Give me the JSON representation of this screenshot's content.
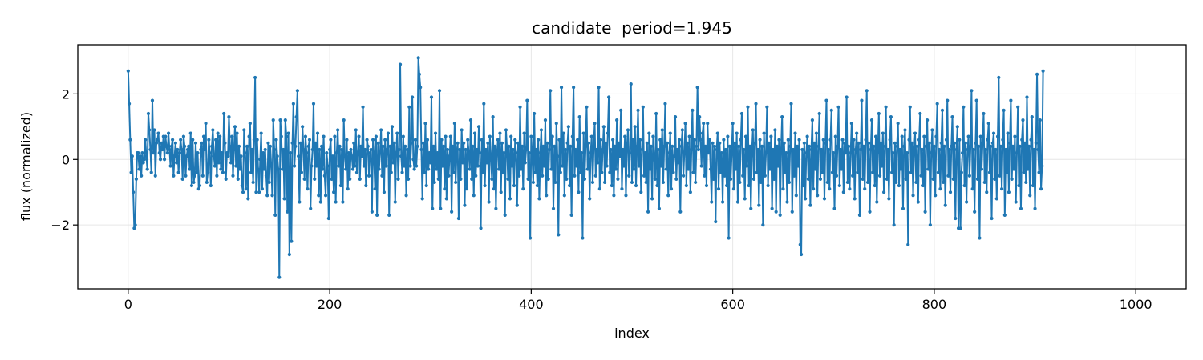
{
  "chart_data": {
    "type": "line",
    "title": "candidate  period=1.945",
    "xlabel": "index",
    "ylabel": "flux (normalized)",
    "xlim": [
      -50,
      1050
    ],
    "ylim": [
      -3.95,
      3.5
    ],
    "x_ticks": [
      0,
      200,
      400,
      600,
      800,
      1000
    ],
    "y_ticks": [
      -2,
      0,
      2
    ],
    "grid": true,
    "marker": "circle",
    "series": [
      {
        "color": "#1f77b4",
        "x_start": 0,
        "x_step": 1,
        "values": [
          2.7,
          1.7,
          0.6,
          -0.4,
          0.1,
          -1.0,
          -2.1,
          -2.0,
          -0.6,
          0.2,
          0.2,
          -0.3,
          0.1,
          -0.5,
          0.2,
          -0.1,
          0.0,
          0.6,
          0.1,
          -0.3,
          1.4,
          0.9,
          0.3,
          -0.4,
          1.8,
          0.2,
          0.9,
          -0.5,
          0.5,
          0.6,
          0.8,
          0.2,
          0.0,
          0.5,
          0.3,
          0.7,
          0.0,
          0.7,
          0.4,
          0.2,
          0.8,
          0.3,
          -0.2,
          0.4,
          0.6,
          -0.5,
          0.1,
          0.5,
          -0.1,
          0.3,
          -0.4,
          0.2,
          0.6,
          0.3,
          -0.6,
          0.7,
          0.4,
          -0.5,
          0.1,
          0.3,
          0.4,
          -0.3,
          0.8,
          -0.8,
          0.6,
          -0.7,
          -0.5,
          0.5,
          -0.4,
          0.2,
          -0.9,
          -0.8,
          0.3,
          0.5,
          -0.5,
          0.7,
          0.3,
          1.1,
          -0.7,
          -0.4,
          0.6,
          0.2,
          -0.8,
          0.4,
          0.9,
          0.1,
          -0.2,
          0.6,
          -0.5,
          0.8,
          -0.1,
          0.7,
          -0.3,
          0.2,
          -0.4,
          1.4,
          0.5,
          -0.6,
          0.2,
          0.1,
          1.3,
          0.4,
          -0.1,
          0.7,
          -0.5,
          0.3,
          1.0,
          -0.2,
          0.8,
          -0.6,
          0.4,
          -0.3,
          0.1,
          -0.8,
          -1.0,
          0.9,
          0.2,
          -0.9,
          0.4,
          -1.2,
          0.7,
          1.1,
          -0.4,
          0.3,
          -0.7,
          0.6,
          2.5,
          -1.0,
          0.6,
          -0.3,
          -1.0,
          0.0,
          0.8,
          -0.9,
          0.2,
          -0.3,
          0.3,
          -0.5,
          -1.1,
          0.5,
          -0.7,
          0.4,
          -0.2,
          -1.1,
          1.2,
          0.3,
          -1.7,
          0.6,
          0.1,
          -0.3,
          -3.6,
          1.2,
          0.7,
          -0.3,
          0.3,
          -1.2,
          1.2,
          0.7,
          -1.6,
          0.8,
          -2.9,
          0.2,
          -2.5,
          0.5,
          1.7,
          -0.2,
          0.4,
          1.3,
          2.1,
          0.1,
          -1.3,
          0.5,
          -0.4,
          1.0,
          0.3,
          -0.6,
          0.7,
          0.2,
          -0.9,
          0.4,
          0.6,
          -1.5,
          -0.2,
          0.3,
          1.7,
          -0.6,
          0.5,
          -0.2,
          0.8,
          -1.1,
          0.3,
          -1.3,
          0.4,
          -0.3,
          0.7,
          -0.5,
          -1.1,
          0.2,
          -0.2,
          -1.8,
          0.3,
          0.6,
          -0.6,
          0.1,
          -1.0,
          0.7,
          -1.3,
          0.2,
          0.9,
          -0.2,
          0.4,
          -0.8,
          0.3,
          -1.3,
          1.2,
          0.1,
          -0.3,
          0.6,
          -0.9,
          0.2,
          -0.6,
          0.3,
          0.1,
          -0.3,
          0.5,
          -0.2,
          0.9,
          -0.4,
          0.2,
          0.7,
          -0.6,
          0.4,
          0.1,
          1.6,
          -0.2,
          0.3,
          -0.8,
          0.6,
          0.4,
          -0.5,
          0.2,
          0.3,
          -1.6,
          0.6,
          0.1,
          -0.9,
          0.7,
          -1.7,
          0.5,
          -0.3,
          0.2,
          0.9,
          -0.5,
          0.4,
          -1.0,
          0.6,
          -0.2,
          0.3,
          0.8,
          -1.7,
          0.4,
          -0.4,
          1.0,
          -0.1,
          0.5,
          -1.3,
          0.2,
          0.8,
          -0.6,
          0.3,
          2.9,
          0.1,
          -0.4,
          0.7,
          -0.2,
          0.4,
          -1.1,
          0.3,
          -0.6,
          1.6,
          -0.2,
          0.5,
          1.9,
          0.0,
          -0.3,
          0.6,
          -0.2,
          0.4,
          3.1,
          2.6,
          2.2,
          0.3,
          -1.2,
          0.5,
          -0.4,
          1.1,
          -0.8,
          0.6,
          -0.3,
          0.2,
          -0.1,
          1.9,
          -1.5,
          0.4,
          -0.7,
          0.8,
          -0.3,
          0.2,
          -0.6,
          2.1,
          -1.5,
          0.6,
          -0.2,
          0.4,
          -0.9,
          0.7,
          -1.2,
          0.3,
          -0.5,
          0.1,
          0.7,
          -1.6,
          0.4,
          -0.4,
          1.1,
          -0.7,
          0.2,
          0.5,
          -1.8,
          0.3,
          -0.6,
          0.9,
          -0.1,
          0.5,
          -1.4,
          0.3,
          -0.9,
          0.6,
          0.2,
          -0.3,
          1.2,
          -0.6,
          0.4,
          -1.1,
          0.8,
          -0.5,
          0.3,
          -0.2,
          1.0,
          0.2,
          -2.1,
          0.6,
          -0.4,
          1.7,
          -0.8,
          0.3,
          -0.1,
          0.5,
          -1.3,
          0.7,
          0.1,
          -0.6,
          1.3,
          -0.9,
          0.4,
          -1.5,
          0.2,
          0.6,
          -0.3,
          0.8,
          -1.0,
          0.5,
          -0.4,
          0.2,
          -1.7,
          0.9,
          0.3,
          -0.6,
          0.4,
          -1.2,
          0.7,
          -0.2,
          0.3,
          -0.8,
          0.6,
          0.2,
          -1.4,
          0.5,
          -0.5,
          1.6,
          -0.3,
          0.4,
          -0.9,
          0.8,
          -0.1,
          0.3,
          1.8,
          -0.6,
          0.2,
          -2.4,
          0.7,
          0.1,
          -0.7,
          1.4,
          -0.4,
          0.3,
          -0.8,
          0.6,
          -1.2,
          0.2,
          0.9,
          -0.5,
          0.4,
          -0.2,
          1.2,
          -1.1,
          0.5,
          -0.6,
          0.3,
          2.1,
          -0.3,
          0.7,
          -1.5,
          0.4,
          -0.7,
          1.1,
          0.1,
          -2.3,
          0.6,
          -0.4,
          2.2,
          -0.2,
          0.8,
          -1.1,
          0.3,
          -0.6,
          0.5,
          1.0,
          -0.8,
          0.4,
          -1.7,
          0.7,
          2.2,
          -0.5,
          0.3,
          -0.2,
          0.6,
          -1.0,
          1.3,
          -0.4,
          0.2,
          -2.4,
          0.8,
          -0.6,
          0.4,
          1.6,
          -0.3,
          0.5,
          -1.2,
          0.2,
          0.7,
          -0.7,
          0.4,
          1.1,
          -0.5,
          0.3,
          -0.1,
          2.2,
          -0.9,
          0.6,
          -0.4,
          0.3,
          1.0,
          -0.7,
          0.5,
          -0.2,
          0.8,
          1.9,
          -0.4,
          0.3,
          -0.8,
          0.6,
          -1.1,
          0.4,
          -0.3,
          1.2,
          -0.6,
          0.5,
          0.1,
          1.5,
          -0.9,
          0.3,
          -0.2,
          0.7,
          -1.1,
          0.4,
          0.9,
          -0.5,
          0.2,
          2.3,
          -0.7,
          0.6,
          -0.3,
          1.0,
          -0.8,
          0.4,
          1.5,
          -0.2,
          0.6,
          -1.0,
          0.3,
          1.6,
          -0.5,
          0.2,
          -0.7,
          0.5,
          -1.6,
          0.8,
          -0.3,
          0.4,
          -1.2,
          0.7,
          0.1,
          -0.6,
          1.4,
          -0.8,
          0.3,
          -1.5,
          0.6,
          -0.2,
          0.9,
          -0.7,
          0.4,
          1.7,
          -0.3,
          0.5,
          -1.1,
          0.2,
          0.8,
          -0.9,
          0.4,
          -0.4,
          0.1,
          1.3,
          -0.6,
          0.3,
          -0.1,
          0.6,
          -1.6,
          0.4,
          0.9,
          -0.5,
          0.2,
          1.1,
          -0.8,
          0.5,
          -0.3,
          0.7,
          -1.0,
          0.3,
          1.5,
          -0.4,
          0.6,
          -0.7,
          0.4,
          2.2,
          0.3,
          1.3,
          0.6,
          -0.2,
          0.8,
          1.1,
          -0.5,
          0.4,
          -0.8,
          1.1,
          0.2,
          0.6,
          -0.3,
          -1.3,
          0.5,
          -0.6,
          0.4,
          -1.9,
          0.3,
          0.8,
          -0.9,
          0.5,
          -0.4,
          0.2,
          -1.3,
          0.6,
          -0.5,
          0.3,
          -0.8,
          0.7,
          -2.4,
          0.4,
          -0.6,
          0.2,
          1.1,
          -0.9,
          0.5,
          -0.3,
          0.8,
          -1.3,
          0.4,
          -0.7,
          0.6,
          1.4,
          -0.5,
          0.3,
          -1.2,
          0.7,
          -0.2,
          1.6,
          -0.8,
          0.4,
          -1.5,
          0.2,
          0.9,
          -0.6,
          0.5,
          1.7,
          -0.4,
          0.3,
          -1.4,
          0.6,
          -0.7,
          0.4,
          -2.0,
          0.8,
          -0.5,
          0.2,
          1.6,
          -0.8,
          0.5,
          -0.3,
          0.7,
          -1.5,
          0.3,
          -0.6,
          0.9,
          -1.6,
          0.4,
          -0.2,
          0.6,
          -1.7,
          0.3,
          1.3,
          -0.9,
          0.5,
          -0.4,
          0.2,
          -1.3,
          0.6,
          -0.7,
          0.4,
          1.7,
          -1.6,
          0.3,
          -0.5,
          0.8,
          -1.1,
          0.4,
          -0.2,
          0.6,
          -2.6,
          -2.9,
          0.3,
          -0.8,
          0.5,
          -1.2,
          0.2,
          0.7,
          -0.6,
          0.4,
          -1.4,
          0.3,
          1.2,
          -0.9,
          0.5,
          -0.3,
          0.8,
          -1.1,
          0.4,
          1.4,
          -0.6,
          0.3,
          -0.4,
          0.6,
          -1.2,
          0.5,
          1.8,
          -0.7,
          0.3,
          -0.9,
          0.6,
          1.5,
          -0.4,
          0.2,
          -1.5,
          0.7,
          -0.5,
          0.4,
          1.6,
          -0.8,
          0.3,
          -0.3,
          0.6,
          -1.0,
          0.5,
          0.2,
          1.9,
          -0.7,
          0.4,
          -0.9,
          0.2,
          1.1,
          -0.5,
          0.6,
          -1.2,
          0.3,
          0.8,
          -0.4,
          0.5,
          -1.7,
          0.3,
          1.8,
          -0.6,
          0.4,
          -0.9,
          0.6,
          2.1,
          -0.7,
          0.5,
          -1.6,
          0.3,
          1.2,
          -0.4,
          0.4,
          -0.8,
          0.7,
          -1.3,
          0.2,
          1.4,
          -0.5,
          0.5,
          -0.2,
          0.8,
          -1.0,
          0.4,
          1.6,
          -0.6,
          0.3,
          -1.2,
          0.6,
          1.3,
          -0.4,
          0.2,
          -2.0,
          0.5,
          -0.7,
          0.4,
          1.1,
          -0.8,
          0.3,
          -0.3,
          0.7,
          -1.5,
          0.4,
          0.9,
          -0.6,
          0.2,
          -2.6,
          0.6,
          1.6,
          -0.4,
          0.5,
          -1.1,
          0.3,
          0.8,
          -0.7,
          0.4,
          -1.3,
          0.6,
          1.4,
          -0.5,
          0.3,
          -0.8,
          0.7,
          -1.6,
          0.4,
          1.2,
          -0.3,
          0.5,
          -2.0,
          0.2,
          0.9,
          -0.6,
          0.4,
          -1.1,
          0.7,
          1.7,
          -0.4,
          0.3,
          -0.9,
          0.5,
          1.5,
          -0.7,
          0.4,
          -1.4,
          0.6,
          1.8,
          -0.5,
          0.3,
          -1.0,
          0.4,
          1.3,
          -0.6,
          0.5,
          -1.8,
          0.3,
          1.0,
          -2.1,
          0.6,
          -2.1,
          -0.4,
          0.2,
          1.6,
          -0.8,
          0.5,
          -1.3,
          0.3,
          0.7,
          -0.5,
          0.4,
          2.1,
          -0.9,
          0.3,
          -1.6,
          0.5,
          1.8,
          -0.6,
          0.4,
          -2.4,
          0.7,
          -0.3,
          0.5,
          1.4,
          -0.7,
          0.3,
          -1.0,
          0.6,
          1.1,
          -0.4,
          0.4,
          -1.8,
          0.5,
          0.8,
          -0.6,
          0.3,
          -1.2,
          0.7,
          2.5,
          -0.5,
          0.4,
          -0.9,
          0.6,
          1.5,
          -1.7,
          0.3,
          -0.4,
          0.8,
          -1.0,
          0.5,
          1.8,
          -0.6,
          0.4,
          -0.3,
          0.7,
          -1.3,
          0.2,
          1.6,
          -0.8,
          0.4,
          -1.5,
          0.6,
          1.2,
          -0.4,
          0.5,
          -0.7,
          1.9,
          -0.3,
          0.4,
          -1.1,
          0.6,
          1.3,
          -0.8,
          0.3,
          -1.5,
          0.5,
          2.6,
          0.3,
          -0.4,
          1.2,
          -0.9,
          -0.2,
          2.7
        ]
      }
    ]
  }
}
